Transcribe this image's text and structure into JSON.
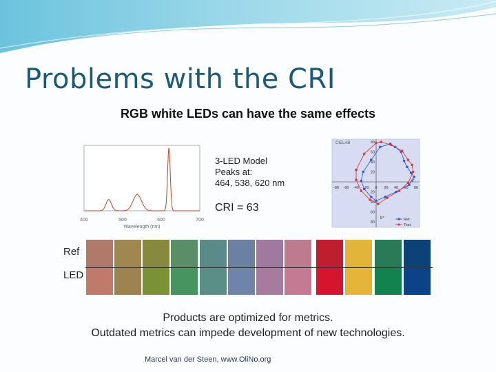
{
  "slide": {
    "title": "Problems with the CRI",
    "subtitle": "RGB white LEDs can have the same effects",
    "footer": "Marcel van der Steen, www.OliNo.org"
  },
  "spectrum_chart": {
    "xlabel": "Wavelength (nm)",
    "x_ticks": [
      "400",
      "500",
      "600",
      "700"
    ],
    "peaks_nm": [
      464,
      538,
      620
    ]
  },
  "model_box": {
    "line1": "3-LED Model",
    "line2": "Peaks at:",
    "line3": "464, 538, 620 nm",
    "cri": "CRI = 63"
  },
  "cie_chart": {
    "corner_label": "CIELAB",
    "a_label": "a*",
    "b_label": "b*",
    "y_ticks": [
      "80",
      "60",
      "40",
      "20",
      "0",
      "20",
      "40",
      "60",
      "80"
    ],
    "x_ticks": [
      "-80",
      "-60",
      "-40",
      "-20",
      "0",
      "20",
      "40",
      "60",
      "80"
    ],
    "legend": [
      {
        "name": "Ref.",
        "color": "#3a57c9"
      },
      {
        "name": "Test",
        "color": "#d43c3c"
      }
    ]
  },
  "comparison": {
    "ref_label": "Ref",
    "led_label": "LED",
    "ref_colors": [
      "#b07a6a",
      "#a0874f",
      "#86893e",
      "#5a8e68",
      "#5b8b88",
      "#6b80a3",
      "#a07a9e",
      "#bd7b8f",
      "#bf1e2e",
      "#e2b53a",
      "#2a7a57",
      "#0b4277"
    ],
    "led_colors": [
      "#c07a6a",
      "#9d834f",
      "#7a9136",
      "#48945e",
      "#5a8f87",
      "#6f84a8",
      "#a67b9e",
      "#c47a92",
      "#d5152d",
      "#e5b53a",
      "#12824f",
      "#0b4288"
    ]
  },
  "bottom": {
    "line1": "Products are optimized for metrics.",
    "line2": "Outdated metrics can impede development of new technologies."
  }
}
